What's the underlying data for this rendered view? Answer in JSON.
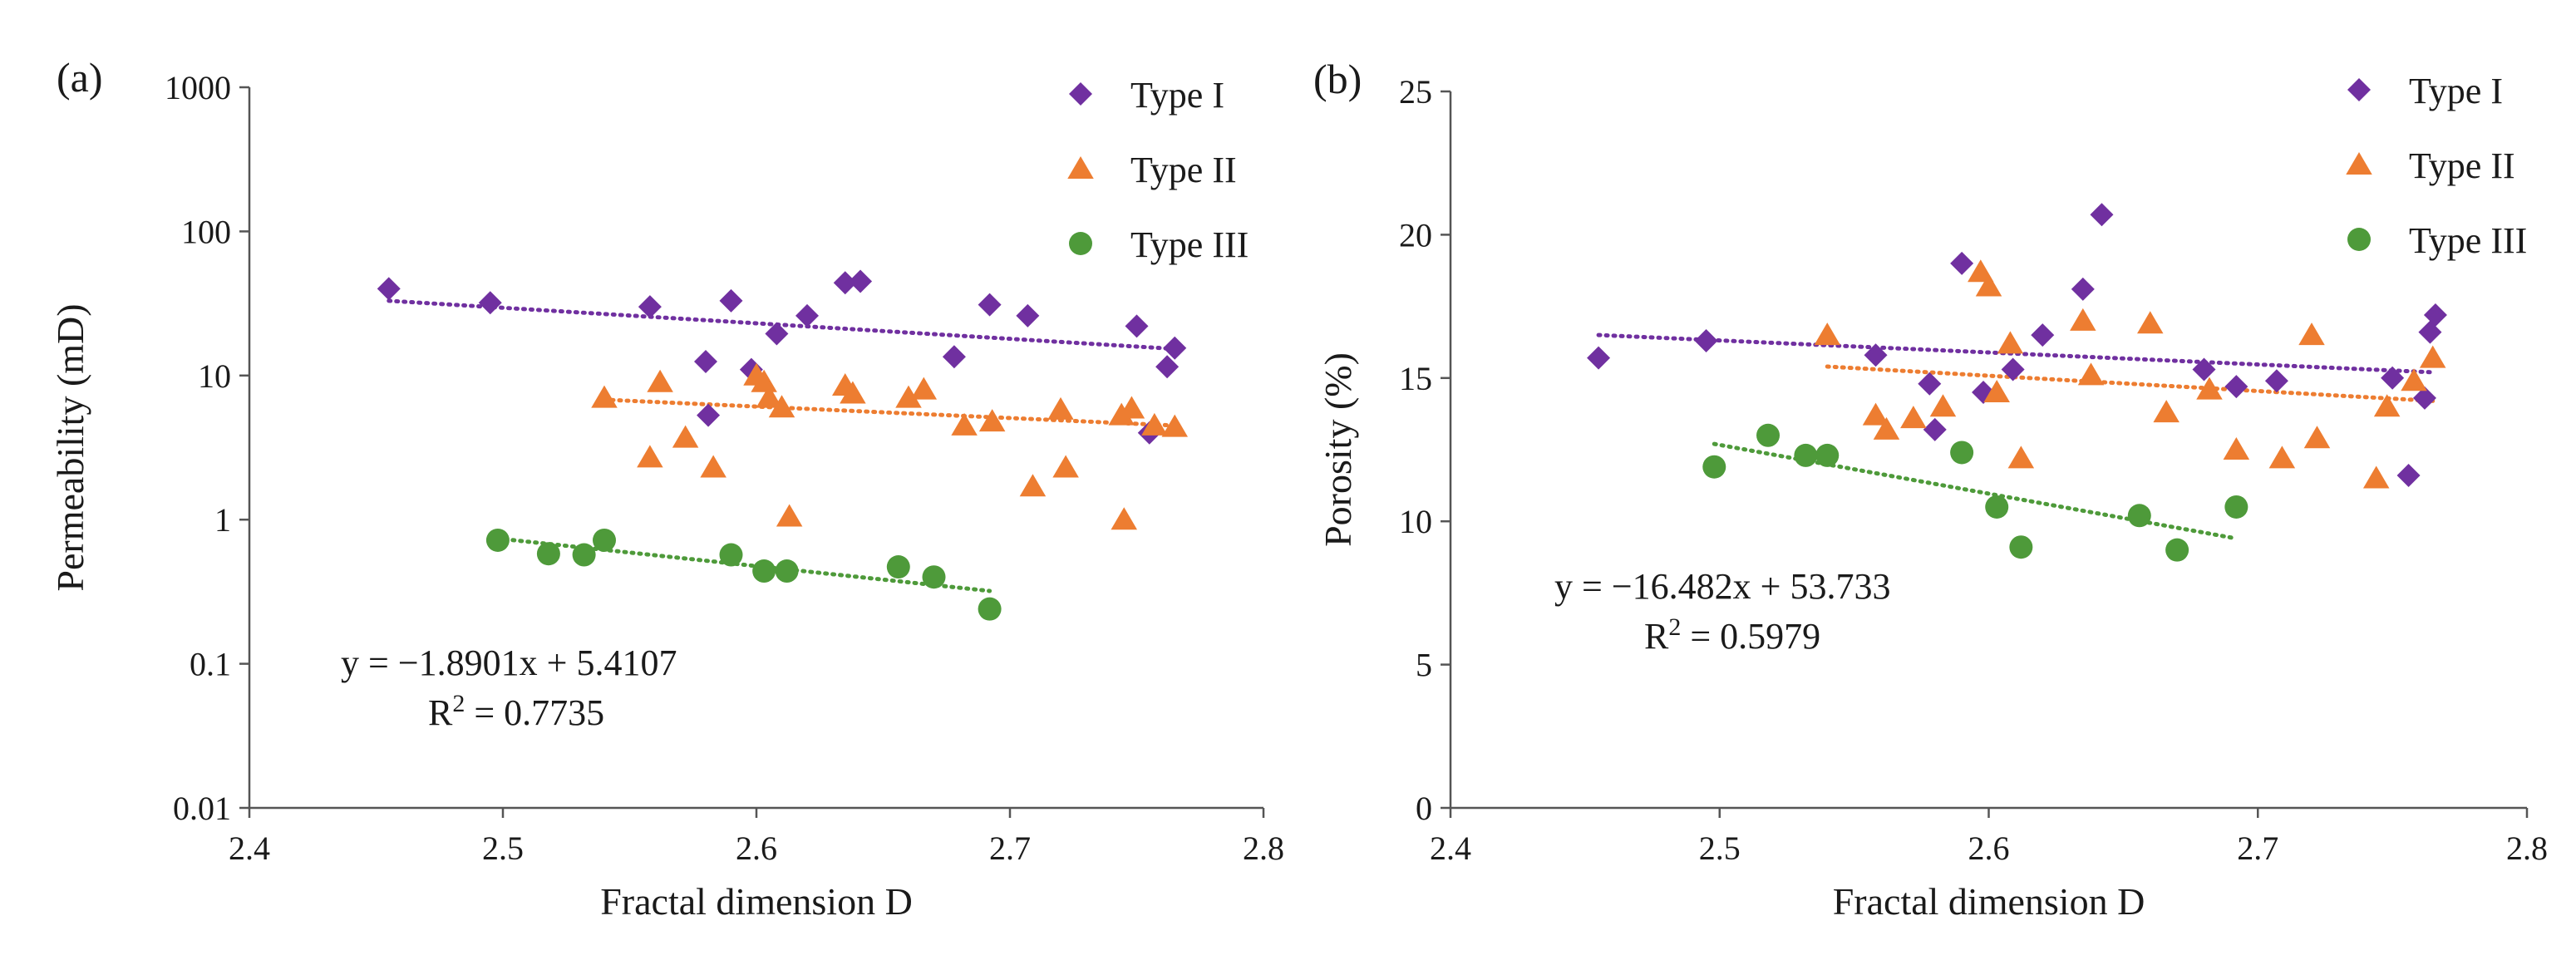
{
  "chart_data": [
    {
      "type": "scatter",
      "panel_label": "(a)",
      "xlabel": "Fractal dimension D",
      "ylabel": "Permeability (mD)",
      "yscale": "log",
      "xlim": [
        2.4,
        2.8
      ],
      "ylim": [
        0.01,
        1000
      ],
      "xticks": [
        "2.4",
        "2.5",
        "2.6",
        "2.7",
        "2.8"
      ],
      "yticks": [
        "0.01",
        "0.1",
        "1",
        "10",
        "100",
        "1000"
      ],
      "grid": false,
      "legend_position": "top-right",
      "equation": "y = −1.8901x + 5.4107",
      "r2_prefix": "R",
      "r2_sup": "2",
      "r2_value": " = 0.7735",
      "series": [
        {
          "name": "Type I",
          "color": "#7030a0",
          "marker": "diamond",
          "x": [
            2.455,
            2.495,
            2.558,
            2.58,
            2.581,
            2.59,
            2.598,
            2.608,
            2.62,
            2.635,
            2.641,
            2.678,
            2.692,
            2.707,
            2.75,
            2.755,
            2.762,
            2.765
          ],
          "y": [
            40,
            32,
            30,
            12.5,
            5.3,
            33,
            11,
            19.5,
            26,
            44,
            45,
            13.5,
            31,
            26,
            22,
            4,
            11.5,
            15.5
          ],
          "trendline": {
            "x": [
              2.455,
              2.765
            ],
            "y": [
              33,
              15.3
            ]
          }
        },
        {
          "name": "Type II",
          "color": "#ed7d31",
          "marker": "triangle",
          "x": [
            2.54,
            2.558,
            2.562,
            2.572,
            2.583,
            2.6,
            2.603,
            2.605,
            2.61,
            2.613,
            2.635,
            2.638,
            2.66,
            2.666,
            2.682,
            2.693,
            2.709,
            2.72,
            2.722,
            2.744,
            2.745,
            2.748,
            2.757,
            2.765
          ],
          "y": [
            7,
            2.7,
            9,
            3.7,
            2.3,
            10,
            9,
            7,
            6,
            1.05,
            8.5,
            7.5,
            7,
            8,
            4.5,
            4.8,
            1.7,
            5.8,
            2.3,
            5.3,
            1.0,
            5.9,
            4.5,
            4.4
          ],
          "trendline": {
            "x": [
              2.54,
              2.765
            ],
            "y": [
              6.8,
              4.5
            ]
          }
        },
        {
          "name": "Type III",
          "color": "#4e9a3a",
          "marker": "circle",
          "x": [
            2.498,
            2.518,
            2.532,
            2.54,
            2.59,
            2.603,
            2.612,
            2.656,
            2.67,
            2.692
          ],
          "y": [
            0.72,
            0.58,
            0.57,
            0.72,
            0.57,
            0.44,
            0.44,
            0.47,
            0.4,
            0.24
          ],
          "trendline": {
            "x": [
              2.498,
              2.692
            ],
            "y": [
              0.74,
              0.32
            ]
          }
        }
      ]
    },
    {
      "type": "scatter",
      "panel_label": "(b)",
      "xlabel": "Fractal dimension D",
      "ylabel": "Porosity (%)",
      "yscale": "linear",
      "xlim": [
        2.4,
        2.8
      ],
      "ylim": [
        0,
        25
      ],
      "xticks": [
        "2.4",
        "2.5",
        "2.6",
        "2.7",
        "2.8"
      ],
      "yticks": [
        "0",
        "5",
        "10",
        "15",
        "20",
        "25"
      ],
      "grid": false,
      "legend_position": "top-right",
      "equation": "y = −16.482x + 53.733",
      "r2_prefix": "R",
      "r2_sup": "2",
      "r2_value": " = 0.5979",
      "series": [
        {
          "name": "Type I",
          "color": "#7030a0",
          "marker": "diamond",
          "x": [
            2.455,
            2.495,
            2.558,
            2.578,
            2.58,
            2.59,
            2.598,
            2.609,
            2.62,
            2.635,
            2.642,
            2.68,
            2.692,
            2.707,
            2.75,
            2.756,
            2.762,
            2.764,
            2.766
          ],
          "y": [
            15.7,
            16.3,
            15.8,
            14.8,
            13.2,
            19,
            14.5,
            15.3,
            16.5,
            18.1,
            20.7,
            15.3,
            14.7,
            14.9,
            15,
            11.6,
            14.3,
            16.6,
            17.2
          ],
          "trendline": {
            "x": [
              2.455,
              2.765
            ],
            "y": [
              16.5,
              15.2
            ]
          }
        },
        {
          "name": "Type II",
          "color": "#ed7d31",
          "marker": "triangle",
          "x": [
            2.54,
            2.558,
            2.562,
            2.572,
            2.583,
            2.597,
            2.6,
            2.603,
            2.608,
            2.612,
            2.635,
            2.638,
            2.66,
            2.666,
            2.682,
            2.692,
            2.709,
            2.72,
            2.722,
            2.744,
            2.748,
            2.758,
            2.765
          ],
          "y": [
            16.5,
            13.7,
            13.2,
            13.6,
            14,
            18.7,
            18.2,
            14.5,
            16.2,
            12.2,
            17,
            15.1,
            16.9,
            13.8,
            14.6,
            12.5,
            12.2,
            16.5,
            12.9,
            11.5,
            14,
            14.9,
            15.7
          ],
          "trendline": {
            "x": [
              2.54,
              2.765
            ],
            "y": [
              15.4,
              14.2
            ]
          }
        },
        {
          "name": "Type III",
          "color": "#4e9a3a",
          "marker": "circle",
          "x": [
            2.498,
            2.518,
            2.532,
            2.54,
            2.59,
            2.603,
            2.612,
            2.656,
            2.67,
            2.692
          ],
          "y": [
            11.9,
            13,
            12.3,
            12.3,
            12.4,
            10.5,
            9.1,
            10.2,
            9,
            10.5
          ],
          "trendline": {
            "x": [
              2.498,
              2.692
            ],
            "y": [
              12.7,
              9.4
            ]
          }
        }
      ]
    }
  ]
}
